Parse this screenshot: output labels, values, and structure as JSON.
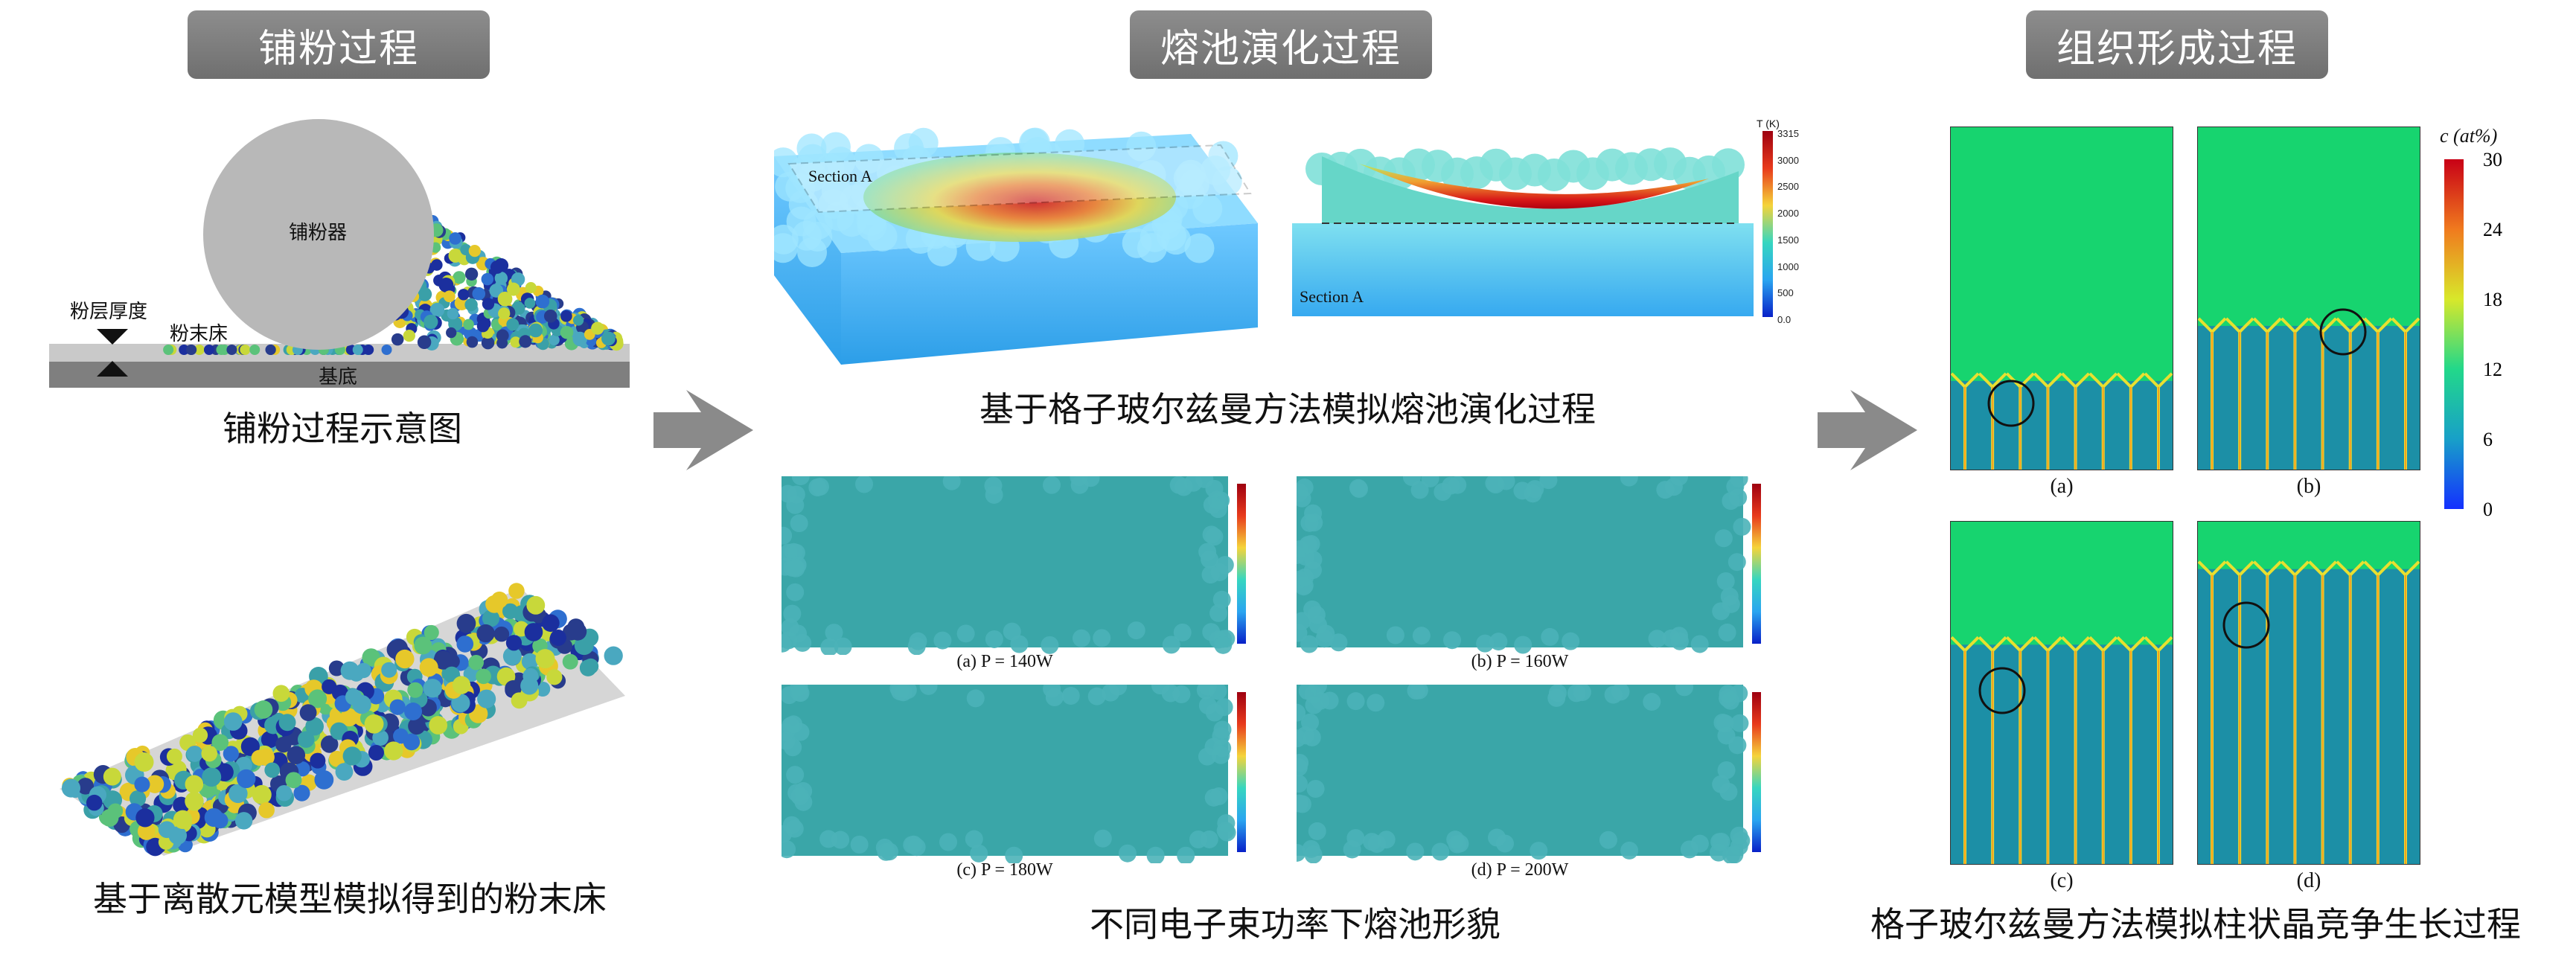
{
  "sections": {
    "powder_spreading": "铺粉过程",
    "melt_pool": "熔池演化过程",
    "microstructure": "组织形成过程"
  },
  "left": {
    "roller_label": "铺粉器",
    "layer_thickness_label": "粉层厚度",
    "powder_bed_label": "粉末床",
    "substrate_label": "基底",
    "schematic_caption": "铺粉过程示意图",
    "dem_caption": "基于离散元模型模拟得到的粉末床"
  },
  "middle": {
    "section_label_1": "Section A",
    "section_label_2": "Section A",
    "top_caption": "基于格子玻尔兹曼方法模拟熔池演化过程",
    "bottom_caption": "不同电子束功率下熔池形貌",
    "colorbar_title": "T (K)",
    "colorbar_ticks": [
      "3315",
      "3000",
      "2500",
      "2000",
      "1500",
      "1000",
      "500",
      "0.0"
    ],
    "panels": [
      {
        "label": "(a)  P = 140W"
      },
      {
        "label": "(b)  P = 160W"
      },
      {
        "label": "(c)  P = 180W"
      },
      {
        "label": "(d)  P = 200W"
      }
    ]
  },
  "right": {
    "colorbar_title": "c (at%)",
    "colorbar_ticks": [
      "30",
      "24",
      "18",
      "12",
      "6",
      "0"
    ],
    "panel_labels": [
      "(a)",
      "(b)",
      "(c)",
      "(d)"
    ],
    "caption": "格子玻尔兹曼方法模拟柱状晶竞争生长过程"
  },
  "colors": {
    "header_bg": "#7a7a7a",
    "arrow": "#8a8a8a",
    "liquid_green": "#17d46f",
    "hot_red": "#c8001a"
  }
}
